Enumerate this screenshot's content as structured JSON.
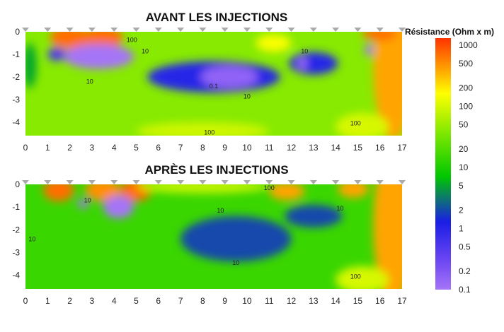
{
  "chart_data": [
    {
      "type": "heatmap",
      "title": "AVANT LES INJECTIONS",
      "x_ticks": [
        0,
        1,
        2,
        3,
        4,
        5,
        6,
        7,
        8,
        9,
        10,
        11,
        12,
        13,
        14,
        15,
        16,
        17
      ],
      "y_ticks": [
        0,
        -1,
        -2,
        -3,
        -4
      ],
      "xlim": [
        0,
        17
      ],
      "ylim": [
        -4.6,
        0
      ],
      "background_value": 40,
      "anomalies": [
        {
          "x": 2.0,
          "y": -0.25,
          "rx": 0.9,
          "ry": 0.5,
          "value": 700
        },
        {
          "x": 3.5,
          "y": -0.25,
          "rx": 0.9,
          "ry": 0.5,
          "value": 700
        },
        {
          "x": 3.3,
          "y": -1.1,
          "rx": 1.6,
          "ry": 0.55,
          "value": 0.1
        },
        {
          "x": 1.4,
          "y": -1.0,
          "rx": 0.4,
          "ry": 0.3,
          "value": 0.5
        },
        {
          "x": 0.2,
          "y": -1.5,
          "rx": 0.3,
          "ry": 1.0,
          "value": 5
        },
        {
          "x": 8.5,
          "y": -2.0,
          "rx": 3.0,
          "ry": 0.7,
          "value": 1
        },
        {
          "x": 9.2,
          "y": -2.0,
          "rx": 1.3,
          "ry": 0.5,
          "value": 0.15
        },
        {
          "x": 13.0,
          "y": -1.4,
          "rx": 1.1,
          "ry": 0.5,
          "value": 1
        },
        {
          "x": 12.5,
          "y": -1.4,
          "rx": 0.2,
          "ry": 0.25,
          "value": 0.1
        },
        {
          "x": 15.5,
          "y": -0.8,
          "rx": 0.2,
          "ry": 0.25,
          "value": 0.1
        },
        {
          "x": 11.2,
          "y": -0.5,
          "rx": 0.8,
          "ry": 0.4,
          "value": 150
        },
        {
          "x": 16.6,
          "y": -1.6,
          "rx": 0.9,
          "ry": 3.2,
          "value": 400
        },
        {
          "x": 16.0,
          "y": -0.1,
          "rx": 0.8,
          "ry": 0.3,
          "value": 700
        },
        {
          "x": 8.0,
          "y": -4.4,
          "rx": 3.0,
          "ry": 0.4,
          "value": 90
        },
        {
          "x": 15.2,
          "y": -4.2,
          "rx": 1.2,
          "ry": 0.6,
          "value": 100
        }
      ],
      "contour_labels": [
        {
          "text": "100",
          "x": 4.8,
          "y": -0.45
        },
        {
          "text": "10",
          "x": 5.4,
          "y": -0.95
        },
        {
          "text": "10",
          "x": 2.9,
          "y": -2.3
        },
        {
          "text": "0.1",
          "x": 8.5,
          "y": -2.5
        },
        {
          "text": "10",
          "x": 10.0,
          "y": -2.95
        },
        {
          "text": "10",
          "x": 12.6,
          "y": -0.95
        },
        {
          "text": "100",
          "x": 8.3,
          "y": -4.55
        },
        {
          "text": "100",
          "x": 14.9,
          "y": -4.15
        }
      ]
    },
    {
      "type": "heatmap",
      "title": "APRÈS LES INJECTIONS",
      "x_ticks": [
        0,
        1,
        2,
        3,
        4,
        5,
        6,
        7,
        8,
        9,
        10,
        11,
        12,
        13,
        14,
        15,
        16,
        17
      ],
      "y_ticks": [
        0,
        -1,
        -2,
        -3,
        -4
      ],
      "xlim": [
        0,
        17
      ],
      "ylim": [
        -4.6,
        0
      ],
      "background_value": 15,
      "anomalies": [
        {
          "x": 1.5,
          "y": -0.25,
          "rx": 0.7,
          "ry": 0.5,
          "value": 700
        },
        {
          "x": 3.5,
          "y": -0.25,
          "rx": 0.8,
          "ry": 0.5,
          "value": 500
        },
        {
          "x": 5.0,
          "y": -0.25,
          "rx": 0.7,
          "ry": 0.5,
          "value": 700
        },
        {
          "x": 4.2,
          "y": -1.0,
          "rx": 0.7,
          "ry": 0.5,
          "value": 0.1
        },
        {
          "x": 2.6,
          "y": -0.85,
          "rx": 0.25,
          "ry": 0.2,
          "value": 0.1
        },
        {
          "x": 9.5,
          "y": -2.4,
          "rx": 2.5,
          "ry": 1.0,
          "value": 2
        },
        {
          "x": 13.0,
          "y": -1.4,
          "rx": 1.3,
          "ry": 0.5,
          "value": 2
        },
        {
          "x": 11.8,
          "y": -0.3,
          "rx": 0.8,
          "ry": 0.4,
          "value": 400
        },
        {
          "x": 14.8,
          "y": -0.2,
          "rx": 0.7,
          "ry": 0.4,
          "value": 400
        },
        {
          "x": 16.6,
          "y": -1.8,
          "rx": 0.9,
          "ry": 3.5,
          "value": 400
        },
        {
          "x": 8.0,
          "y": -0.1,
          "rx": 3.0,
          "ry": 0.3,
          "value": 80
        },
        {
          "x": 15.2,
          "y": -4.2,
          "rx": 1.2,
          "ry": 0.6,
          "value": 100
        }
      ],
      "contour_labels": [
        {
          "text": "10",
          "x": 2.8,
          "y": -0.8
        },
        {
          "text": "100",
          "x": 11.0,
          "y": -0.25
        },
        {
          "text": "10",
          "x": 8.8,
          "y": -1.25
        },
        {
          "text": "10",
          "x": 14.2,
          "y": -1.15
        },
        {
          "text": "10",
          "x": 0.3,
          "y": -2.5
        },
        {
          "text": "10",
          "x": 9.5,
          "y": -3.55
        },
        {
          "text": "100",
          "x": 14.9,
          "y": -4.15
        }
      ]
    }
  ],
  "colorbar": {
    "title": "Résistance (Ohm x m)",
    "scale": "log",
    "range": [
      0.1,
      1300
    ],
    "ticks": [
      {
        "value": 1000,
        "label": "1000"
      },
      {
        "value": 500,
        "label": "500"
      },
      {
        "value": 200,
        "label": "200"
      },
      {
        "value": 100,
        "label": "100"
      },
      {
        "value": 50,
        "label": "50"
      },
      {
        "value": 20,
        "label": "20"
      },
      {
        "value": 10,
        "label": "10"
      },
      {
        "value": 5,
        "label": "5"
      },
      {
        "value": 2,
        "label": "2"
      },
      {
        "value": 1,
        "label": "1"
      },
      {
        "value": 0.5,
        "label": "0.5"
      },
      {
        "value": 0.2,
        "label": "0.2"
      },
      {
        "value": 0.1,
        "label": "0.1"
      }
    ],
    "colors": [
      "#a575f7",
      "#1a1ee6",
      "#00c700",
      "#7de800",
      "#ffff00",
      "#ffa000",
      "#ff3300"
    ]
  }
}
